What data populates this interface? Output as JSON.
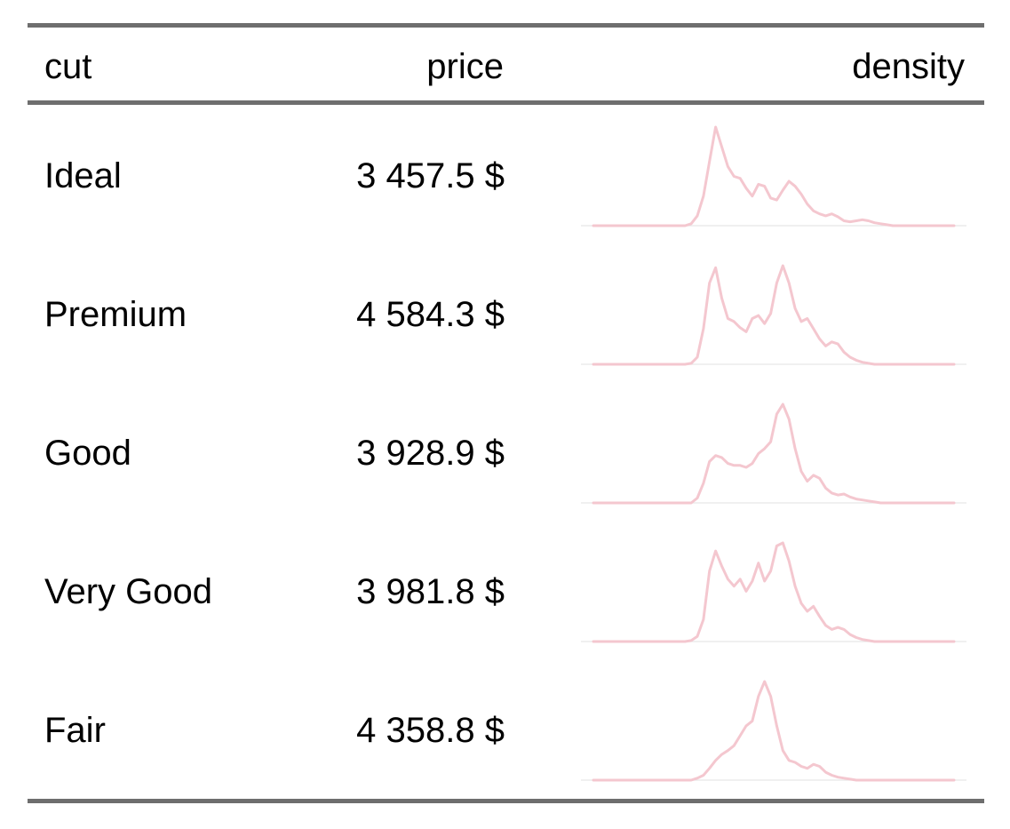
{
  "table": {
    "headers": {
      "cut": "cut",
      "price": "price",
      "density": "density"
    }
  },
  "chart_data": {
    "type": "table",
    "columns": [
      "cut",
      "price",
      "density"
    ],
    "sparkline_type": "density",
    "sparkline_color": "#f4c7cf",
    "baseline_color": "#e8e8e8",
    "rows": [
      {
        "cut": "Ideal",
        "price": "3 457.5 $",
        "density": [
          0,
          0,
          0,
          0,
          0,
          0,
          0,
          0,
          0,
          0,
          0,
          0,
          0,
          0,
          0,
          0,
          0.02,
          0.1,
          0.3,
          0.65,
          1.0,
          0.8,
          0.6,
          0.5,
          0.48,
          0.38,
          0.3,
          0.42,
          0.4,
          0.28,
          0.26,
          0.36,
          0.45,
          0.4,
          0.32,
          0.22,
          0.15,
          0.12,
          0.1,
          0.12,
          0.09,
          0.05,
          0.04,
          0.05,
          0.06,
          0.05,
          0.03,
          0.02,
          0.01,
          0,
          0,
          0,
          0,
          0,
          0,
          0,
          0,
          0,
          0,
          0
        ]
      },
      {
        "cut": "Premium",
        "price": "4 584.3 $",
        "density": [
          0,
          0,
          0,
          0,
          0,
          0,
          0,
          0,
          0,
          0,
          0,
          0,
          0,
          0,
          0,
          0,
          0.01,
          0.07,
          0.35,
          0.8,
          0.95,
          0.65,
          0.45,
          0.42,
          0.36,
          0.32,
          0.45,
          0.48,
          0.4,
          0.5,
          0.8,
          0.97,
          0.8,
          0.55,
          0.42,
          0.45,
          0.35,
          0.25,
          0.18,
          0.22,
          0.2,
          0.12,
          0.07,
          0.04,
          0.02,
          0.01,
          0,
          0,
          0,
          0,
          0,
          0,
          0,
          0,
          0,
          0,
          0,
          0,
          0,
          0
        ]
      },
      {
        "cut": "Good",
        "price": "3 928.9 $",
        "density": [
          0,
          0,
          0,
          0,
          0,
          0,
          0,
          0,
          0,
          0,
          0,
          0,
          0,
          0,
          0,
          0,
          0,
          0.05,
          0.2,
          0.42,
          0.48,
          0.46,
          0.4,
          0.38,
          0.38,
          0.36,
          0.4,
          0.5,
          0.55,
          0.62,
          0.9,
          1.0,
          0.85,
          0.55,
          0.32,
          0.22,
          0.28,
          0.25,
          0.15,
          0.1,
          0.08,
          0.09,
          0.06,
          0.04,
          0.03,
          0.02,
          0.01,
          0,
          0,
          0,
          0,
          0,
          0,
          0,
          0,
          0,
          0,
          0,
          0,
          0
        ]
      },
      {
        "cut": "Very Good",
        "price": "3 981.8 $",
        "density": [
          0,
          0,
          0,
          0,
          0,
          0,
          0,
          0,
          0,
          0,
          0,
          0,
          0,
          0,
          0,
          0,
          0.01,
          0.05,
          0.22,
          0.7,
          0.9,
          0.75,
          0.62,
          0.55,
          0.62,
          0.5,
          0.6,
          0.78,
          0.6,
          0.7,
          0.95,
          0.98,
          0.8,
          0.55,
          0.38,
          0.3,
          0.35,
          0.25,
          0.16,
          0.12,
          0.14,
          0.12,
          0.07,
          0.04,
          0.02,
          0.01,
          0,
          0,
          0,
          0,
          0,
          0,
          0,
          0,
          0,
          0,
          0,
          0,
          0,
          0
        ]
      },
      {
        "cut": "Fair",
        "price": "4 358.8 $",
        "density": [
          0,
          0,
          0,
          0,
          0,
          0,
          0,
          0,
          0,
          0,
          0,
          0,
          0,
          0,
          0,
          0,
          0,
          0.02,
          0.05,
          0.12,
          0.2,
          0.26,
          0.3,
          0.35,
          0.45,
          0.55,
          0.6,
          0.85,
          1.0,
          0.85,
          0.55,
          0.3,
          0.2,
          0.18,
          0.14,
          0.12,
          0.16,
          0.14,
          0.08,
          0.05,
          0.03,
          0.02,
          0.01,
          0,
          0,
          0,
          0,
          0,
          0,
          0,
          0,
          0,
          0,
          0,
          0,
          0,
          0,
          0,
          0,
          0
        ]
      }
    ]
  }
}
